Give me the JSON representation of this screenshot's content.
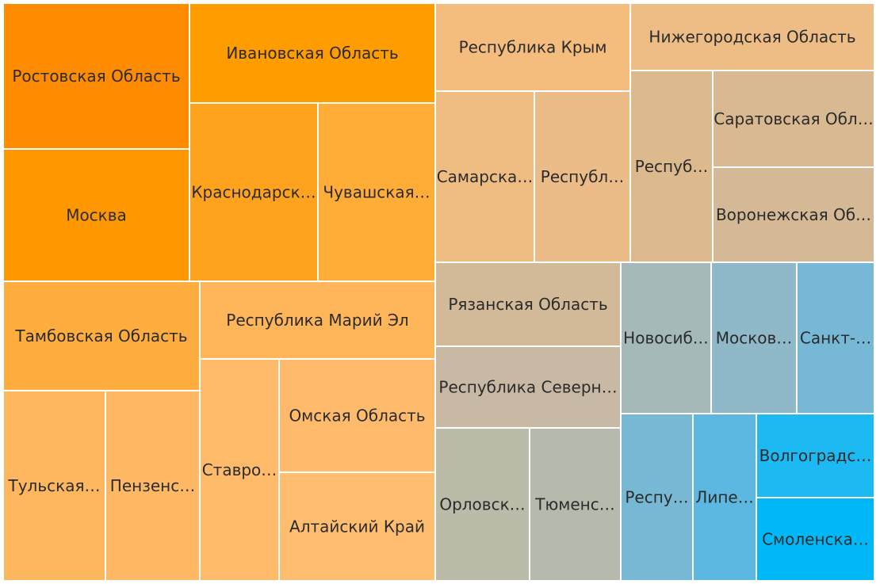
{
  "chart_data": {
    "type": "treemap",
    "title": "",
    "cells": [
      {
        "label": "Ростовская Область",
        "shown": "Ростовская Область",
        "color": "#FF8C00"
      },
      {
        "label": "Москва",
        "shown": "Москва",
        "color": "#FF9800"
      },
      {
        "label": "Ивановская Область",
        "shown": "Ивановская Область",
        "color": "#FF9C00"
      },
      {
        "label": "Краснодарский Край",
        "shown": "Краснодарск…",
        "color": "#FFA31E"
      },
      {
        "label": "Чувашская Республика",
        "shown": "Чувашская…",
        "color": "#FFAD37"
      },
      {
        "label": "Тамбовская Область",
        "shown": "Тамбовская Область",
        "color": "#FFAD3F"
      },
      {
        "label": "Республика Марий Эл",
        "shown": "Республика Марий Эл",
        "color": "#FFB559"
      },
      {
        "label": "Тульская Область",
        "shown": "Тульская…",
        "color": "#FFB75F"
      },
      {
        "label": "Пензенская Область",
        "shown": "Пензенс…",
        "color": "#FFB965"
      },
      {
        "label": "Ставропольский Край",
        "shown": "Ставро…",
        "color": "#FFBB69"
      },
      {
        "label": "Омская Область",
        "shown": "Омская Область",
        "color": "#FFBB6B"
      },
      {
        "label": "Алтайский Край",
        "shown": "Алтайский Край",
        "color": "#FFBD70"
      },
      {
        "label": "Республика Крым",
        "shown": "Республика Крым",
        "color": "#F4BD7E"
      },
      {
        "label": "Самарская Область",
        "shown": "Самарска…",
        "color": "#EFBD82"
      },
      {
        "label": "Республика",
        "shown": "Республ…",
        "color": "#EBBC87"
      },
      {
        "label": "Нижегородская Область",
        "shown": "Нижегородская Область",
        "color": "#EDBD85"
      },
      {
        "label": "Республика",
        "shown": "Респуб…",
        "color": "#DDBA8E"
      },
      {
        "label": "Саратовская Область",
        "shown": "Саратовская Обл…",
        "color": "#D9B992"
      },
      {
        "label": "Воронежская Область",
        "shown": "Воронежская Об…",
        "color": "#D5B996"
      },
      {
        "label": "Рязанская Область",
        "shown": "Рязанская Область",
        "color": "#D2B998"
      },
      {
        "label": "Республика Северная Осетия",
        "shown": "Республика Северн…",
        "color": "#C7B9A4"
      },
      {
        "label": "Орловская Область",
        "shown": "Орловск…",
        "color": "#BABBA9"
      },
      {
        "label": "Тюменская Область",
        "shown": "Тюменс…",
        "color": "#B5BAAC"
      },
      {
        "label": "Новосибирская Область",
        "shown": "Новосиб…",
        "color": "#A4B9B8"
      },
      {
        "label": "Московская Область",
        "shown": "Москов…",
        "color": "#8FB8C8"
      },
      {
        "label": "Санкт-Петербург",
        "shown": "Санкт-…",
        "color": "#76B8D6"
      },
      {
        "label": "Республика",
        "shown": "Респу…",
        "color": "#77B8D4"
      },
      {
        "label": "Липецкая Область",
        "shown": "Липе…",
        "color": "#5CB8E0"
      },
      {
        "label": "Волгоградская Область",
        "shown": "Волгоградс…",
        "color": "#1CB9F2"
      },
      {
        "label": "Смоленская Область",
        "shown": "Смоленска…",
        "color": "#00B8F8"
      }
    ]
  }
}
